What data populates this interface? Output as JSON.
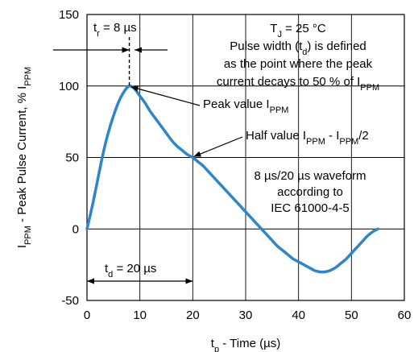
{
  "chart_data": {
    "type": "line",
    "x_axis": {
      "label_main": "t",
      "label_sub": "p",
      "label_rest": " - Time (µs)",
      "range": [
        0,
        60
      ],
      "ticks": [
        0,
        10,
        20,
        30,
        40,
        50,
        60
      ],
      "tick_labels": [
        "0",
        "10",
        "20",
        "30",
        "40",
        "50",
        "60"
      ]
    },
    "y_axis": {
      "label_parts": [
        {
          "t": "I",
          "sub": false
        },
        {
          "t": "PPM",
          "sub": true
        },
        {
          "t": " - Peak Pulse Current, % I",
          "sub": false
        },
        {
          "t": "PPM",
          "sub": true
        }
      ],
      "range": [
        -50,
        150
      ],
      "ticks": [
        -50,
        0,
        50,
        100,
        150
      ],
      "tick_labels": [
        "-50",
        "0",
        "50",
        "100",
        "150"
      ]
    },
    "grid": true,
    "series": [
      {
        "color": "#2e86c8",
        "x": [
          0,
          1,
          2,
          3,
          4,
          5,
          6,
          7,
          8,
          9,
          10,
          11,
          12,
          13,
          14,
          15,
          16,
          17,
          18,
          19,
          20,
          21,
          22,
          23,
          24,
          25,
          26,
          27,
          28,
          29,
          30,
          31,
          32,
          33,
          34,
          35,
          36,
          37,
          38,
          39,
          40,
          41,
          42,
          43,
          44,
          45,
          46,
          47,
          48,
          49,
          50,
          51,
          52,
          53,
          54,
          55
        ],
        "y": [
          0,
          16,
          34,
          52,
          67,
          79,
          89,
          96,
          100,
          98,
          93,
          88,
          82,
          77,
          72,
          67,
          62,
          58,
          55,
          52,
          50,
          47,
          44,
          40,
          36,
          32,
          28,
          24,
          20,
          16,
          12,
          8,
          4,
          0,
          -4,
          -8,
          -12,
          -15,
          -18,
          -21,
          -23,
          -25,
          -27,
          -29,
          -30,
          -30,
          -29,
          -27,
          -24,
          -21,
          -17,
          -13,
          -9,
          -5,
          -2,
          0
        ]
      }
    ],
    "annotations": {
      "tr_parts": [
        {
          "t": "t",
          "sub": false
        },
        {
          "t": "r",
          "sub": true
        },
        {
          "t": " = 8 µs",
          "sub": false
        }
      ],
      "td_parts": [
        {
          "t": "t",
          "sub": false
        },
        {
          "t": "d",
          "sub": true
        },
        {
          "t": " = 20 µs",
          "sub": false
        }
      ],
      "tj_parts": [
        {
          "t": "T",
          "sub": false
        },
        {
          "t": "J",
          "sub": true
        },
        {
          "t": " = 25 °C",
          "sub": false
        }
      ],
      "pulse_line1": "Pulse width (t",
      "pulse_line1_sub": "d",
      "pulse_line1_end": ") is defined",
      "pulse_line2": "as the point where the peak",
      "pulse_line3": "current decays to 50 % of I",
      "pulse_line3_sub": "PPM",
      "peak_parts": [
        {
          "t": "Peak value I",
          "sub": false
        },
        {
          "t": "PPM",
          "sub": true
        }
      ],
      "half_parts": [
        {
          "t": "Half value I",
          "sub": false
        },
        {
          "t": "PPM",
          "sub": true
        },
        {
          "t": " - I",
          "sub": false
        },
        {
          "t": "PPM",
          "sub": true
        },
        {
          "t": "/2",
          "sub": false
        }
      ],
      "waveform_line1": "8 µs/20 µs waveform",
      "waveform_line2": "according to",
      "waveform_line3": "IEC 61000-4-5"
    }
  }
}
